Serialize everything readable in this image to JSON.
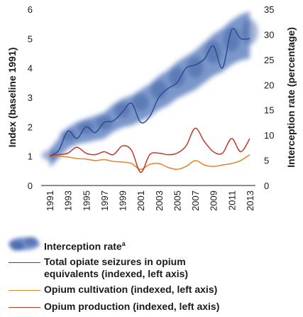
{
  "chart_data": {
    "type": "line",
    "title": "",
    "x": [
      "1991",
      "1992",
      "1993",
      "1994",
      "1995",
      "1996",
      "1997",
      "1998",
      "1999",
      "2000",
      "2001",
      "2002",
      "2003",
      "2004",
      "2005",
      "2006",
      "2007",
      "2008",
      "2009",
      "2010",
      "2011",
      "2012",
      "2013"
    ],
    "x_tick_labels": [
      "1991",
      "1993",
      "1995",
      "1997",
      "1999",
      "2001",
      "2003",
      "2005",
      "2007",
      "2009",
      "2011",
      "2013"
    ],
    "ylabel_left": "Index (baseline 1991)",
    "ylabel_right": "Interception rate (percentage)",
    "ylim_left": [
      0,
      6
    ],
    "ylim_right": [
      0,
      35
    ],
    "yticks_left": [
      "0",
      "1",
      "2",
      "3",
      "4",
      "5",
      "6"
    ],
    "yticks_right": [
      "0",
      "5",
      "10",
      "15",
      "20",
      "25",
      "30",
      "35"
    ],
    "grid": false,
    "legend_position": "bottom",
    "series": [
      {
        "name": "Interception rate",
        "name_superscript": "a",
        "axis": "right",
        "style": "blurred-band",
        "color": "#4a6fb5",
        "values": [
          6.0,
          8.0,
          10.0,
          11.0,
          11.5,
          12.0,
          12.5,
          14.0,
          15.0,
          15.5,
          16.5,
          17.5,
          19.0,
          20.0,
          21.5,
          22.5,
          23.5,
          25.0,
          26.5,
          27.5,
          29.0,
          30.0,
          30.5
        ]
      },
      {
        "name": "Total opiate seizures in opium equivalents (indexed, left axis)",
        "axis": "left",
        "color": "#2d4e8c",
        "values": [
          1.0,
          1.2,
          1.85,
          1.6,
          2.0,
          1.8,
          2.15,
          2.2,
          2.5,
          2.8,
          2.15,
          2.35,
          3.0,
          3.3,
          3.5,
          4.0,
          4.1,
          4.3,
          4.75,
          4.0,
          5.3,
          5.0,
          5.0
        ]
      },
      {
        "name": "Opium cultivation (indexed, left axis)",
        "axis": "left",
        "color": "#e8822b",
        "values": [
          1.0,
          1.0,
          0.97,
          0.92,
          0.9,
          0.85,
          0.88,
          0.82,
          0.8,
          0.75,
          0.55,
          0.72,
          0.75,
          0.62,
          0.55,
          0.65,
          0.85,
          0.7,
          0.65,
          0.7,
          0.75,
          0.85,
          1.05
        ]
      },
      {
        "name": "Opium production (indexed, left axis)",
        "axis": "left",
        "color": "#c0392b",
        "values": [
          1.0,
          1.05,
          1.1,
          1.3,
          1.1,
          1.05,
          1.15,
          1.05,
          1.35,
          1.2,
          0.45,
          1.05,
          1.1,
          1.05,
          1.1,
          1.35,
          1.95,
          1.5,
          1.15,
          1.1,
          1.6,
          1.15,
          1.6
        ]
      }
    ]
  },
  "legend": {
    "interception": "Interception rate",
    "interception_sup": "a",
    "seizures_line1": "Total opiate seizures in opium",
    "seizures_line2": "equivalents (indexed, left axis)",
    "cultivation": "Opium cultivation (indexed, left axis)",
    "production": "Opium production (indexed, left axis)"
  }
}
